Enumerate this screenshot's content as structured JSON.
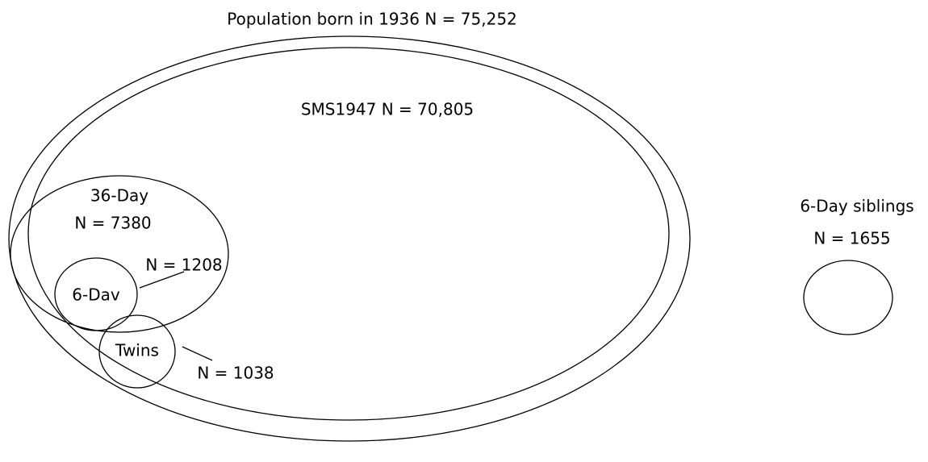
{
  "title": "Population born in 1936 N = 75,252",
  "nodes": [
    {
      "label": "SMS1947 N = 70,805"
    },
    {
      "label": "36-Day",
      "count": "N = 7380"
    },
    {
      "label": "6-Dav",
      "count": "N = 1208"
    },
    {
      "label": "Twins",
      "count": "N = 1038"
    },
    {
      "label": "6-Day siblings",
      "count": "N = 1655"
    }
  ]
}
